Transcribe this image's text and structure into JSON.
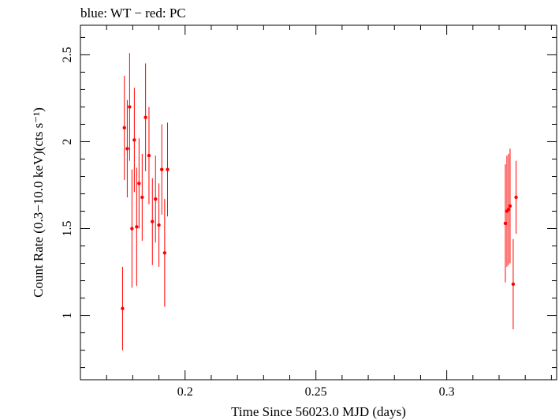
{
  "chart_data": {
    "type": "scatter",
    "title": "blue: WT − red: PC",
    "xlabel": "Time Since 56023.0 MJD (days)",
    "ylabel": "Count Rate (0.3−10.0 keV)(cts s⁻¹)",
    "xlim": [
      0.16,
      0.342
    ],
    "ylim": [
      0.63,
      2.67
    ],
    "xticks": [
      0.2,
      0.25,
      0.3
    ],
    "xtick_labels": [
      "0.2",
      "0.25",
      "0.3"
    ],
    "yticks": [
      1,
      1.5,
      2,
      2.5
    ],
    "ytick_labels": [
      "1",
      "1.5",
      "2",
      "2.5"
    ],
    "series": [
      {
        "name": "PC",
        "color": "#ff0000",
        "points": [
          {
            "x": 0.1761,
            "y": 1.04,
            "err": 0.24
          },
          {
            "x": 0.1768,
            "y": 2.08,
            "err": 0.3
          },
          {
            "x": 0.1779,
            "y": 1.96,
            "err": 0.28
          },
          {
            "x": 0.1788,
            "y": 2.2,
            "err": 0.31
          },
          {
            "x": 0.1797,
            "y": 1.5,
            "err": 0.34
          },
          {
            "x": 0.1806,
            "y": 2.01,
            "err": 0.3
          },
          {
            "x": 0.1815,
            "y": 1.51,
            "err": 0.34
          },
          {
            "x": 0.1824,
            "y": 1.76,
            "err": 0.26
          },
          {
            "x": 0.1836,
            "y": 1.68,
            "err": 0.25
          },
          {
            "x": 0.1849,
            "y": 2.14,
            "err": 0.31
          },
          {
            "x": 0.1862,
            "y": 1.92,
            "err": 0.28
          },
          {
            "x": 0.1875,
            "y": 1.54,
            "err": 0.25
          },
          {
            "x": 0.1887,
            "y": 1.67,
            "err": 0.25
          },
          {
            "x": 0.19,
            "y": 1.52,
            "err": 0.24
          },
          {
            "x": 0.1911,
            "y": 1.84,
            "err": 0.26
          },
          {
            "x": 0.1922,
            "y": 1.36,
            "err": 0.31
          },
          {
            "x": 0.1933,
            "y": 1.84,
            "err": 0.27
          },
          {
            "x": 0.3224,
            "y": 1.53,
            "err": 0.34
          },
          {
            "x": 0.323,
            "y": 1.6,
            "err": 0.32
          },
          {
            "x": 0.3236,
            "y": 1.61,
            "err": 0.32
          },
          {
            "x": 0.3242,
            "y": 1.63,
            "err": 0.33
          },
          {
            "x": 0.3254,
            "y": 1.18,
            "err": 0.26
          },
          {
            "x": 0.3265,
            "y": 1.68,
            "err": 0.21
          }
        ]
      }
    ]
  }
}
